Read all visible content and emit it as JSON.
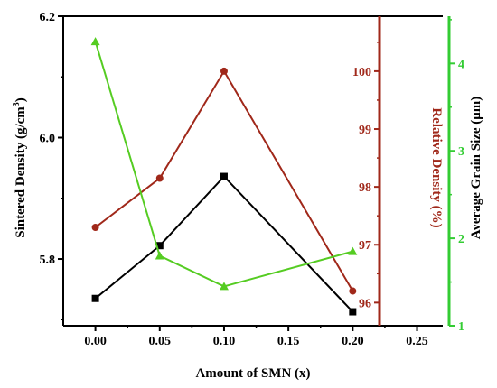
{
  "chart_data": {
    "type": "line",
    "xlabel": "Amount of SMN (x)",
    "x_ticks": [
      "0.00",
      "0.05",
      "0.10",
      "0.15",
      "0.20",
      "0.25"
    ],
    "xlim": [
      -0.025,
      0.27
    ],
    "x": [
      0.0,
      0.05,
      0.1,
      0.2
    ],
    "axes": {
      "left": {
        "label_main": "Sintered Density (g/cm",
        "label_sup": "3",
        "label_close": ")",
        "ylim": [
          5.69,
          6.2
        ],
        "ticks": [
          "5.8",
          "6.0",
          "6.2"
        ],
        "tick_values": [
          5.8,
          6.0,
          6.2
        ],
        "color": "#000000"
      },
      "right1": {
        "label": "Relative Density (%)",
        "ylim": [
          95.6,
          100.95
        ],
        "ticks": [
          "96",
          "97",
          "98",
          "99",
          "100"
        ],
        "tick_values": [
          96,
          97,
          98,
          99,
          100
        ],
        "color": "#a0281a"
      },
      "right2": {
        "label": "Average Grain Size (μm)",
        "ylim": [
          1.0,
          4.54
        ],
        "ticks": [
          "1",
          "2",
          "3",
          "4"
        ],
        "tick_values": [
          1,
          2,
          3,
          4
        ],
        "color": "#33cc33"
      }
    },
    "series": [
      {
        "axis": "left",
        "marker": "square",
        "color": "#000000",
        "values": [
          5.735,
          5.822,
          5.936,
          5.713
        ]
      },
      {
        "axis": "right1",
        "marker": "circle",
        "color": "#a0281a",
        "values": [
          97.3,
          98.15,
          100.0,
          96.2
        ]
      },
      {
        "axis": "right2",
        "marker": "triangle",
        "color": "#55cc22",
        "values": [
          4.25,
          1.8,
          1.45,
          1.85
        ]
      }
    ]
  }
}
